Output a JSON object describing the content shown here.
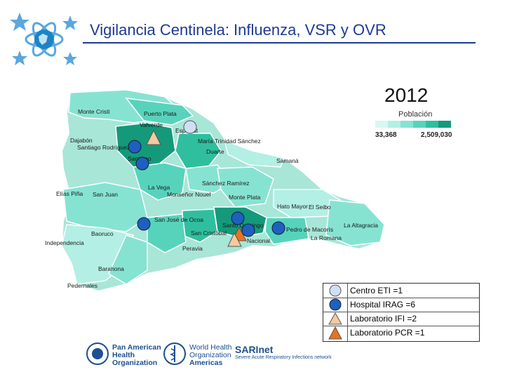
{
  "title": "Vigilancia Centinela: Influenza, VSR y OVR",
  "year": "2012",
  "population_legend": {
    "title": "Población",
    "min": "33,368",
    "max": "2,509,030",
    "colors": [
      "#d9f7f2",
      "#b3efe4",
      "#86e3d2",
      "#57d3bc",
      "#2fbf9f",
      "#149a7b"
    ]
  },
  "map": {
    "places": [
      "Monte Cristi",
      "Puerto Plata",
      "Valverde",
      "Espaillat",
      "Dajabón",
      "Santiago Rodríguez",
      "Santiago",
      "María Trinidad Sánchez",
      "Duarte",
      "Samaná",
      "La Vega",
      "Sánchez Ramírez",
      "Monseñor Nouel",
      "Elías Piña",
      "San Juan",
      "Monte Plata",
      "Hato Mayor",
      "El Seibo",
      "San José de Ocoa",
      "Santo Domingo",
      "Pedro de Macorís",
      "La Altagracia",
      "Baoruco",
      "San Cristóbal",
      "La Romana",
      "Independencia",
      "Peravia",
      "Nacional",
      "Barahona",
      "Pedernales"
    ]
  },
  "legend": {
    "rows": [
      {
        "label": "Centro ETI =1",
        "symbol": "circle",
        "color": "#cfe0f5"
      },
      {
        "label": "Hospital IRAG =6",
        "symbol": "circle",
        "color": "#1f5fbf"
      },
      {
        "label": "Laboratorio IFI =2",
        "symbol": "triangle",
        "color": "#f6c9a0"
      },
      {
        "label": "Laboratorio PCR =1",
        "symbol": "triangle",
        "color": "#e8731f"
      }
    ]
  },
  "footer": {
    "paho": [
      "Pan American",
      "Health",
      "Organization"
    ],
    "who": [
      "World Health",
      "Organization",
      "Americas"
    ],
    "sari_brand": "SARInet",
    "sari_sub": "Severe Acute Respiratory Infections network"
  }
}
